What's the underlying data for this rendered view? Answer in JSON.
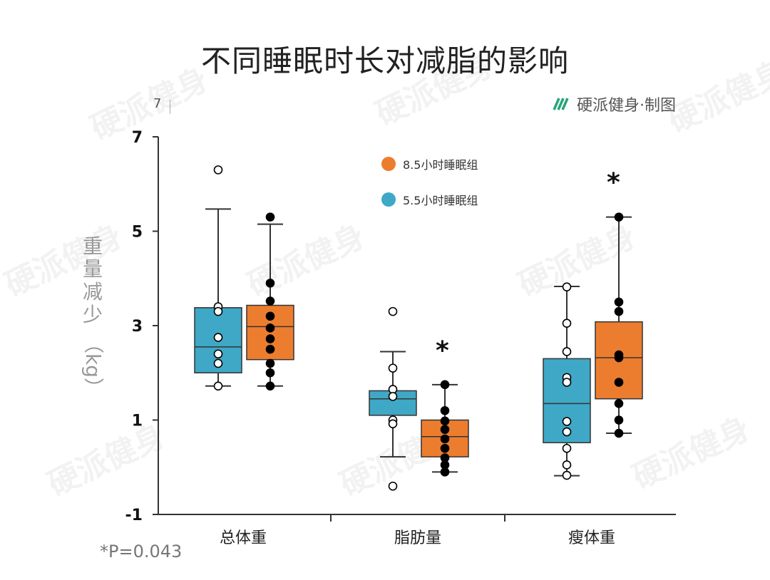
{
  "title": "不同睡眠时长对减脂的影响",
  "brand": "硬派健身·制图",
  "footnote": "*P=0.043",
  "stray_label": "7",
  "ylabel_main": "重量减少",
  "ylabel_unit": "（kg）",
  "watermark_text": "硬派健身",
  "colors": {
    "blue": "#3fa8c6",
    "orange": "#ed7d2e",
    "axis": "#333333"
  },
  "chart_data": {
    "type": "box",
    "title": "不同睡眠时长对减脂的影响",
    "ylabel": "重量减少（kg）",
    "ylim": [
      -1,
      7
    ],
    "yticks": [
      -1,
      1,
      3,
      5,
      7
    ],
    "categories": [
      "总体重",
      "脂肪量",
      "瘦体重"
    ],
    "series": [
      {
        "name": "5.5小时睡眠组",
        "color": "#3fa8c6",
        "dot": "open",
        "boxes": [
          {
            "q1": 2.0,
            "median": 2.55,
            "q3": 3.38,
            "whisker_low": 1.72,
            "whisker_high": 5.47,
            "points": [
              6.3,
              3.4,
              3.3,
              2.75,
              2.4,
              2.2,
              1.72
            ]
          },
          {
            "q1": 1.1,
            "median": 1.45,
            "q3": 1.62,
            "whisker_low": 0.22,
            "whisker_high": 2.45,
            "points": [
              3.3,
              2.1,
              1.65,
              1.5,
              1.0,
              0.92,
              -0.4
            ]
          },
          {
            "q1": 0.52,
            "median": 1.35,
            "q3": 2.3,
            "whisker_low": -0.18,
            "whisker_high": 3.83,
            "points": [
              3.82,
              3.05,
              2.45,
              1.9,
              1.8,
              0.97,
              0.75,
              0.4,
              0.05,
              -0.17
            ]
          }
        ]
      },
      {
        "name": "8.5小时睡眠组",
        "color": "#ed7d2e",
        "dot": "filled",
        "boxes": [
          {
            "q1": 2.28,
            "median": 2.98,
            "q3": 3.43,
            "whisker_low": 1.72,
            "whisker_high": 5.15,
            "points": [
              5.3,
              3.9,
              3.52,
              3.2,
              2.95,
              2.72,
              2.5,
              2.2,
              2.0,
              1.72
            ]
          },
          {
            "q1": 0.22,
            "median": 0.65,
            "q3": 1.0,
            "whisker_low": -0.1,
            "whisker_high": 1.75,
            "points": [
              1.75,
              1.2,
              0.98,
              0.8,
              0.6,
              0.4,
              0.2,
              0.05,
              -0.1
            ]
          },
          {
            "q1": 1.45,
            "median": 2.32,
            "q3": 3.08,
            "whisker_low": 0.72,
            "whisker_high": 5.3,
            "points": [
              5.3,
              3.5,
              3.3,
              2.38,
              2.32,
              1.8,
              1.35,
              1.0,
              0.72
            ]
          }
        ]
      }
    ],
    "annotations": [
      {
        "category": "脂肪量",
        "text": "*"
      },
      {
        "category": "瘦体重",
        "text": "*"
      }
    ]
  }
}
